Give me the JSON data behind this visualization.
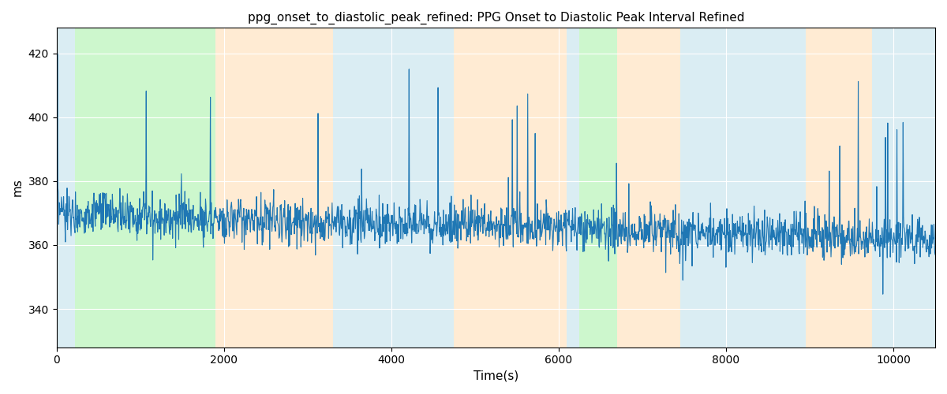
{
  "title": "ppg_onset_to_diastolic_peak_refined: PPG Onset to Diastolic Peak Interval Refined",
  "xlabel": "Time(s)",
  "ylabel": "ms",
  "xlim": [
    0,
    10500
  ],
  "ylim": [
    328,
    428
  ],
  "yticks": [
    340,
    360,
    380,
    400,
    420
  ],
  "xticks": [
    0,
    2000,
    4000,
    6000,
    8000,
    10000
  ],
  "line_color": "#1f77b4",
  "line_width": 0.8,
  "bg_bands": [
    {
      "xmin": 0,
      "xmax": 220,
      "color": "#add8e6",
      "alpha": 0.45
    },
    {
      "xmin": 220,
      "xmax": 1900,
      "color": "#90ee90",
      "alpha": 0.45
    },
    {
      "xmin": 1900,
      "xmax": 3300,
      "color": "#ffd8a8",
      "alpha": 0.5
    },
    {
      "xmin": 3300,
      "xmax": 4750,
      "color": "#add8e6",
      "alpha": 0.45
    },
    {
      "xmin": 4750,
      "xmax": 6100,
      "color": "#ffd8a8",
      "alpha": 0.5
    },
    {
      "xmin": 6100,
      "xmax": 6250,
      "color": "#add8e6",
      "alpha": 0.45
    },
    {
      "xmin": 6250,
      "xmax": 6700,
      "color": "#90ee90",
      "alpha": 0.45
    },
    {
      "xmin": 6700,
      "xmax": 7450,
      "color": "#ffd8a8",
      "alpha": 0.5
    },
    {
      "xmin": 7450,
      "xmax": 8950,
      "color": "#add8e6",
      "alpha": 0.45
    },
    {
      "xmin": 8950,
      "xmax": 9750,
      "color": "#ffd8a8",
      "alpha": 0.5
    },
    {
      "xmin": 9750,
      "xmax": 10500,
      "color": "#add8e6",
      "alpha": 0.45
    }
  ],
  "figsize": [
    12.0,
    5.0
  ],
  "dpi": 100,
  "title_fontsize": 11,
  "label_fontsize": 11
}
